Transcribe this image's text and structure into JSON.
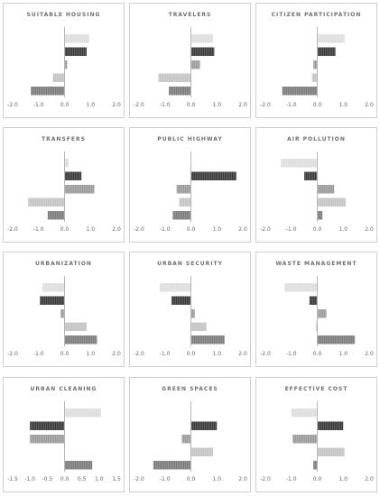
{
  "chart_data": [
    {
      "type": "bar",
      "orientation": "horizontal",
      "title": "SUITABLE HOUSING",
      "xlim": [
        -2.0,
        2.0
      ],
      "xticks": [
        "-2.0",
        "-1.0",
        "0.0",
        "1.0",
        "2.0"
      ],
      "values": [
        0.95,
        0.85,
        0.1,
        -0.45,
        -1.3
      ],
      "colors": [
        "#dedede",
        "#3a3a3a",
        "#9b9b9b",
        "#c4c4c4",
        "#7c7c7c"
      ]
    },
    {
      "type": "bar",
      "orientation": "horizontal",
      "title": "TRAVELERS",
      "xlim": [
        -2.0,
        2.0
      ],
      "xticks": [
        "-2.0",
        "-1.0",
        "0.0",
        "1.0",
        "2.0"
      ],
      "values": [
        0.85,
        0.9,
        0.35,
        -1.25,
        -0.85
      ],
      "colors": [
        "#dedede",
        "#3a3a3a",
        "#9b9b9b",
        "#c4c4c4",
        "#7c7c7c"
      ]
    },
    {
      "type": "bar",
      "orientation": "horizontal",
      "title": "CITIZEN PARTICIPATION",
      "xlim": [
        -2.0,
        2.0
      ],
      "xticks": [
        "-2.0",
        "-1.0",
        "0.0",
        "1.0",
        "2.0"
      ],
      "values": [
        1.05,
        0.7,
        -0.15,
        -0.2,
        -1.35
      ],
      "colors": [
        "#dedede",
        "#3a3a3a",
        "#9b9b9b",
        "#c4c4c4",
        "#7c7c7c"
      ]
    },
    {
      "type": "bar",
      "orientation": "horizontal",
      "title": "TRANSFERS",
      "xlim": [
        -2.0,
        2.0
      ],
      "xticks": [
        "-2.0",
        "-1.0",
        "0.0",
        "1.0",
        "2.0"
      ],
      "values": [
        0.15,
        0.65,
        1.15,
        -1.4,
        -0.65
      ],
      "colors": [
        "#dedede",
        "#3a3a3a",
        "#9b9b9b",
        "#c4c4c4",
        "#7c7c7c"
      ]
    },
    {
      "type": "bar",
      "orientation": "horizontal",
      "title": "PUBLIC HIGHWAY",
      "xlim": [
        -2.0,
        2.0
      ],
      "xticks": [
        "-2.0",
        "-1.0",
        "0.0",
        "1.0",
        "2.0"
      ],
      "values": [
        0.0,
        1.75,
        -0.55,
        -0.45,
        -0.7
      ],
      "colors": [
        "#dedede",
        "#3a3a3a",
        "#9b9b9b",
        "#c4c4c4",
        "#7c7c7c"
      ]
    },
    {
      "type": "bar",
      "orientation": "horizontal",
      "title": "AIR POLLUTION",
      "xlim": [
        -2.0,
        2.0
      ],
      "xticks": [
        "-2.0",
        "-1.0",
        "0.0",
        "1.0",
        "2.0"
      ],
      "values": [
        -1.4,
        -0.5,
        0.65,
        1.1,
        0.2
      ],
      "colors": [
        "#dedede",
        "#3a3a3a",
        "#9b9b9b",
        "#c4c4c4",
        "#7c7c7c"
      ]
    },
    {
      "type": "bar",
      "orientation": "horizontal",
      "title": "URBANIZATION",
      "xlim": [
        -2.0,
        2.0
      ],
      "xticks": [
        "-2.0",
        "-1.0",
        "0.0",
        "1.0",
        "2.0"
      ],
      "values": [
        -0.85,
        -0.95,
        -0.15,
        0.85,
        1.25
      ],
      "colors": [
        "#dedede",
        "#3a3a3a",
        "#9b9b9b",
        "#c4c4c4",
        "#7c7c7c"
      ]
    },
    {
      "type": "bar",
      "orientation": "horizontal",
      "title": "URBAN SECURITY",
      "xlim": [
        -2.0,
        2.0
      ],
      "xticks": [
        "-2.0",
        "-1.0",
        "0.0",
        "1.0",
        "2.0"
      ],
      "values": [
        -1.2,
        -0.75,
        0.15,
        0.6,
        1.3
      ],
      "colors": [
        "#dedede",
        "#3a3a3a",
        "#9b9b9b",
        "#c4c4c4",
        "#7c7c7c"
      ]
    },
    {
      "type": "bar",
      "orientation": "horizontal",
      "title": "WASTE MANAGEMENT",
      "xlim": [
        -2.0,
        2.0
      ],
      "xticks": [
        "-2.0",
        "-1.0",
        "0.0",
        "1.0",
        "2.0"
      ],
      "values": [
        -1.25,
        -0.3,
        0.35,
        -0.05,
        1.45
      ],
      "colors": [
        "#dedede",
        "#3a3a3a",
        "#9b9b9b",
        "#c4c4c4",
        "#7c7c7c"
      ]
    },
    {
      "type": "bar",
      "orientation": "horizontal",
      "title": "URBAN CLEANING",
      "xlim": [
        -1.5,
        1.5
      ],
      "xticks": [
        "-1.5",
        "-1.0",
        "-0.5",
        "0.0",
        "0.5",
        "1.0",
        "1.5"
      ],
      "values": [
        1.05,
        -1.0,
        -1.0,
        0.0,
        0.8
      ],
      "colors": [
        "#dedede",
        "#3a3a3a",
        "#9b9b9b",
        "#c4c4c4",
        "#7c7c7c"
      ]
    },
    {
      "type": "bar",
      "orientation": "horizontal",
      "title": "GREEN SPACES",
      "xlim": [
        -2.0,
        2.0
      ],
      "xticks": [
        "-2.0",
        "-1.0",
        "0.0",
        "1.0",
        "2.0"
      ],
      "values": [
        0.0,
        1.0,
        -0.35,
        0.85,
        -1.45
      ],
      "colors": [
        "#dedede",
        "#3a3a3a",
        "#9b9b9b",
        "#c4c4c4",
        "#7c7c7c"
      ]
    },
    {
      "type": "bar",
      "orientation": "horizontal",
      "title": "EFFECTIVE COST",
      "xlim": [
        -2.0,
        2.0
      ],
      "xticks": [
        "-2.0",
        "-1.0",
        "0.0",
        "1.0",
        "2.0"
      ],
      "values": [
        -1.0,
        1.0,
        -0.95,
        1.05,
        -0.15
      ],
      "colors": [
        "#dedede",
        "#3a3a3a",
        "#9b9b9b",
        "#c4c4c4",
        "#7c7c7c"
      ]
    }
  ]
}
